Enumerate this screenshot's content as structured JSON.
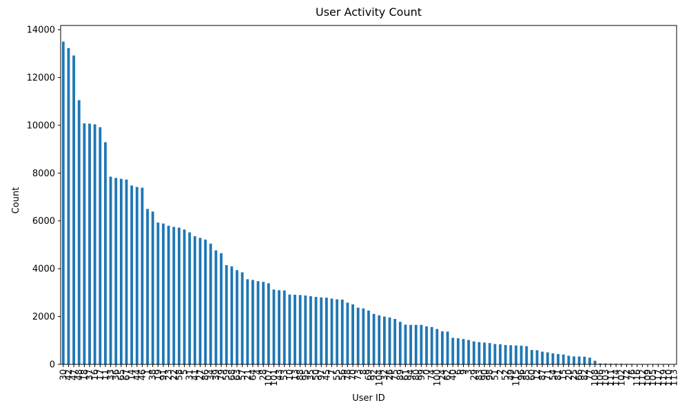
{
  "chart_data": {
    "type": "bar",
    "title": "User Activity Count",
    "x_label": "User ID",
    "y_label": "Count",
    "color": "#1f77b4",
    "categories": [
      30,
      42,
      47,
      48,
      18,
      37,
      16,
      17,
      11,
      33,
      36,
      65,
      67,
      14,
      44,
      46,
      1,
      38,
      19,
      91,
      23,
      22,
      58,
      5,
      31,
      41,
      27,
      86,
      34,
      39,
      79,
      59,
      68,
      63,
      57,
      21,
      64,
      4,
      28,
      107,
      101,
      43,
      53,
      10,
      13,
      88,
      95,
      35,
      50,
      97,
      45,
      7,
      55,
      56,
      78,
      70,
      73,
      8,
      69,
      92,
      104,
      32,
      26,
      75,
      89,
      61,
      94,
      80,
      99,
      0,
      74,
      100,
      24,
      62,
      40,
      6,
      9,
      3,
      29,
      83,
      90,
      98,
      51,
      2,
      52,
      49,
      115,
      96,
      85,
      60,
      12,
      87,
      71,
      54,
      81,
      15,
      20,
      25,
      66,
      82,
      77,
      108,
      106,
      103,
      111,
      114,
      102,
      72,
      76,
      116,
      112,
      109,
      105,
      117,
      119,
      110,
      113
    ],
    "values": [
      13500,
      13230,
      12920,
      11050,
      10080,
      10070,
      10040,
      9920,
      9290,
      7850,
      7800,
      7760,
      7730,
      7480,
      7420,
      7390,
      6500,
      6390,
      5930,
      5890,
      5800,
      5750,
      5720,
      5640,
      5520,
      5360,
      5290,
      5220,
      5050,
      4770,
      4650,
      4150,
      4100,
      3940,
      3850,
      3560,
      3530,
      3480,
      3450,
      3390,
      3130,
      3100,
      3090,
      2920,
      2910,
      2900,
      2880,
      2850,
      2820,
      2800,
      2790,
      2750,
      2720,
      2710,
      2580,
      2510,
      2370,
      2340,
      2250,
      2110,
      2050,
      2000,
      1960,
      1900,
      1780,
      1660,
      1650,
      1650,
      1650,
      1590,
      1560,
      1480,
      1380,
      1370,
      1110,
      1090,
      1060,
      1020,
      960,
      930,
      910,
      890,
      850,
      840,
      810,
      800,
      790,
      780,
      760,
      600,
      590,
      530,
      500,
      460,
      430,
      410,
      360,
      330,
      330,
      320,
      280,
      150,
      40,
      35,
      30,
      28,
      25,
      22,
      20,
      10,
      8,
      5,
      4,
      3,
      2,
      1,
      1
    ],
    "ylim": [
      0,
      14175
    ],
    "yticks": [
      0,
      2000,
      4000,
      6000,
      8000,
      10000,
      12000,
      14000
    ],
    "grid": false
  }
}
